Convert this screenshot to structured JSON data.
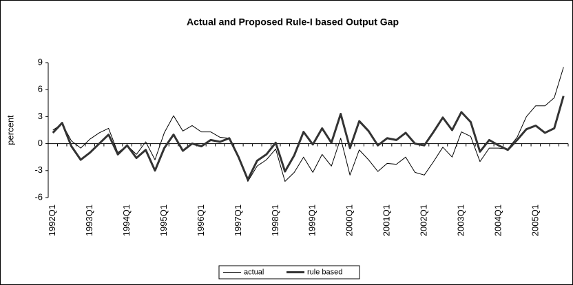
{
  "chart_data": {
    "type": "line",
    "title": "Actual and Proposed Rule-I based Output Gap",
    "y_label": "percent",
    "categories": [
      "1992Q1",
      null,
      null,
      null,
      "1993Q1",
      null,
      null,
      null,
      "1994Q1",
      null,
      null,
      null,
      "1995Q1",
      null,
      null,
      null,
      "1996Q1",
      null,
      null,
      null,
      "1997Q1",
      null,
      null,
      null,
      "1998Q1",
      null,
      null,
      null,
      "1999Q1",
      null,
      null,
      null,
      "2000Q1",
      null,
      null,
      null,
      "2001Q1",
      null,
      null,
      null,
      "2002Q1",
      null,
      null,
      null,
      "2003Q1",
      null,
      null,
      null,
      "2004Q1",
      null,
      null,
      null,
      "2005Q1",
      null,
      null,
      null
    ],
    "series": [
      {
        "name": "actual",
        "color": "#000000",
        "width": 1,
        "values": [
          1.5,
          2.2,
          0.3,
          -0.5,
          0.5,
          1.2,
          1.7,
          -1.0,
          -0.2,
          -1.2,
          0.2,
          -1.8,
          1.2,
          3.1,
          1.4,
          2.0,
          1.3,
          1.3,
          0.7,
          0.6,
          -1.5,
          -4.2,
          -2.5,
          -1.8,
          -0.6,
          -4.2,
          -3.2,
          -1.5,
          -3.2,
          -1.2,
          -2.5,
          0.6,
          -3.5,
          -0.7,
          -1.8,
          -3.1,
          -2.2,
          -2.3,
          -1.5,
          -3.2,
          -3.5,
          -2.0,
          -0.4,
          -1.5,
          1.3,
          0.8,
          -2.0,
          -0.5,
          -0.5,
          -0.6,
          0.7,
          3.0,
          4.2,
          4.2,
          5.1,
          8.5
        ]
      },
      {
        "name": "rule based",
        "color": "#333333",
        "width": 3,
        "values": [
          1.2,
          2.3,
          -0.3,
          -1.8,
          -1.0,
          0.0,
          1.0,
          -1.2,
          -0.2,
          -1.6,
          -0.7,
          -3.0,
          -0.5,
          1.0,
          -0.8,
          0.0,
          -0.3,
          0.4,
          0.2,
          0.6,
          -1.5,
          -4.0,
          -1.9,
          -1.2,
          0.1,
          -3.1,
          -1.3,
          1.3,
          -0.1,
          1.7,
          0.1,
          3.3,
          -0.5,
          2.5,
          1.4,
          -0.2,
          0.6,
          0.4,
          1.2,
          0.0,
          -0.2,
          1.3,
          2.9,
          1.5,
          3.5,
          2.4,
          -0.9,
          0.4,
          -0.2,
          -0.7,
          0.4,
          1.6,
          2.0,
          1.2,
          1.7,
          5.3
        ]
      }
    ],
    "ylim": [
      -6,
      9
    ],
    "yticks": [
      -6,
      -3,
      0,
      3,
      6,
      9
    ],
    "grid": false,
    "legend": "bottom"
  }
}
